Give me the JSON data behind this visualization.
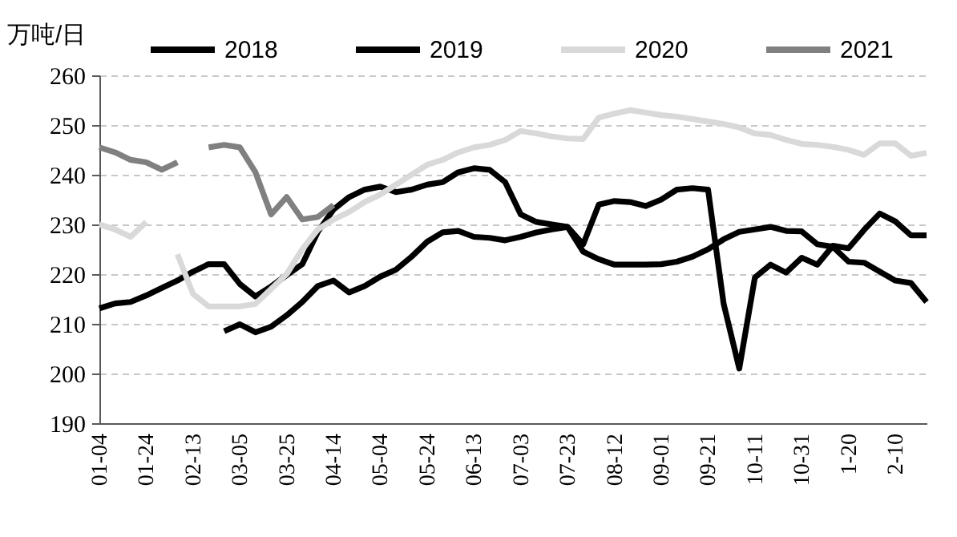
{
  "chart_data": {
    "type": "line",
    "ylabel": "万吨/日",
    "categories": [
      "01-04",
      null,
      null,
      "01-24",
      null,
      null,
      "02-13",
      null,
      null,
      "03-05",
      null,
      null,
      "03-25",
      null,
      null,
      "04-14",
      null,
      null,
      "05-04",
      null,
      null,
      "05-24",
      null,
      null,
      "06-13",
      null,
      null,
      "07-03",
      null,
      null,
      "07-23",
      null,
      null,
      "08-12",
      null,
      null,
      "09-01",
      null,
      null,
      "09-21",
      null,
      null,
      "10-11",
      null,
      null,
      "10-31",
      null,
      null,
      "1-20",
      null,
      null,
      "2-10",
      null,
      null
    ],
    "series": [
      {
        "name": "2018",
        "color": "#000000",
        "values": [
          213.1,
          214.1,
          214.4,
          215.7,
          217.2,
          218.7,
          220.5,
          222,
          222,
          218,
          215.5,
          217.5,
          219.8,
          222,
          228.5,
          233,
          235.5,
          237,
          237.6,
          236.5,
          237,
          238,
          238.5,
          240.5,
          241.3,
          241,
          238.5,
          232,
          230.5,
          230,
          229.5,
          226,
          234,
          234.7,
          234.5,
          233.7,
          235,
          237,
          237.3,
          237,
          214,
          201,
          219.3,
          221.9,
          220.3,
          223.3,
          221.9,
          225.7,
          225.2,
          228.9,
          232.2,
          230.6,
          227.8,
          227.8
        ]
      },
      {
        "name": "2019",
        "color": "#000000",
        "values": [
          null,
          null,
          null,
          null,
          null,
          null,
          null,
          null,
          208.5,
          209.9,
          208.3,
          209.4,
          211.7,
          214.4,
          217.6,
          218.7,
          216.3,
          217.6,
          219.5,
          220.9,
          223.5,
          226.5,
          228.4,
          228.7,
          227.5,
          227.3,
          226.8,
          227.5,
          228.4,
          229,
          229.5,
          224.5,
          223,
          221.9,
          221.9,
          221.9,
          222,
          222.5,
          223.5,
          225,
          227,
          228.5,
          229,
          229.5,
          228.7,
          228.6,
          226,
          225.5,
          222.5,
          222.3,
          220.5,
          218.7,
          218.2,
          214.4
        ]
      },
      {
        "name": "2020",
        "color": "#d9d9d9",
        "values": [
          230,
          229,
          227.5,
          230.5,
          null,
          224,
          216,
          213.5,
          213.5,
          213.5,
          214,
          217,
          220,
          225,
          229,
          231,
          232.5,
          234.5,
          236,
          238,
          240,
          242,
          243,
          244.5,
          245.5,
          246,
          247,
          248.8,
          248.3,
          247.7,
          247.3,
          247.2,
          251.5,
          252.3,
          253,
          252.5,
          252,
          251.7,
          251.2,
          250.7,
          250.2,
          249.5,
          248.3,
          248,
          247,
          246.2,
          246,
          245.6,
          245,
          244,
          246.3,
          246.3,
          243.8,
          244.4
        ]
      },
      {
        "name": "2021",
        "color": "#808080",
        "values": [
          245.5,
          244.5,
          243,
          242.5,
          241,
          242.5,
          null,
          245.5,
          246,
          245.5,
          240.5,
          232,
          235.5,
          231,
          231.5,
          233.9,
          null,
          null,
          null,
          null,
          null,
          null,
          null,
          null,
          null,
          null,
          null,
          null,
          null,
          null,
          null,
          null,
          null,
          null,
          null,
          null,
          null,
          null,
          null,
          null,
          null,
          null,
          null,
          null,
          null,
          null,
          null,
          null,
          null,
          null,
          null,
          null,
          null,
          null
        ]
      }
    ],
    "ylim": [
      190,
      260
    ],
    "yticks": [
      190,
      200,
      210,
      220,
      230,
      240,
      250,
      260
    ],
    "grid": "y",
    "legend": "top",
    "line_style": "solid",
    "marker": "none"
  }
}
